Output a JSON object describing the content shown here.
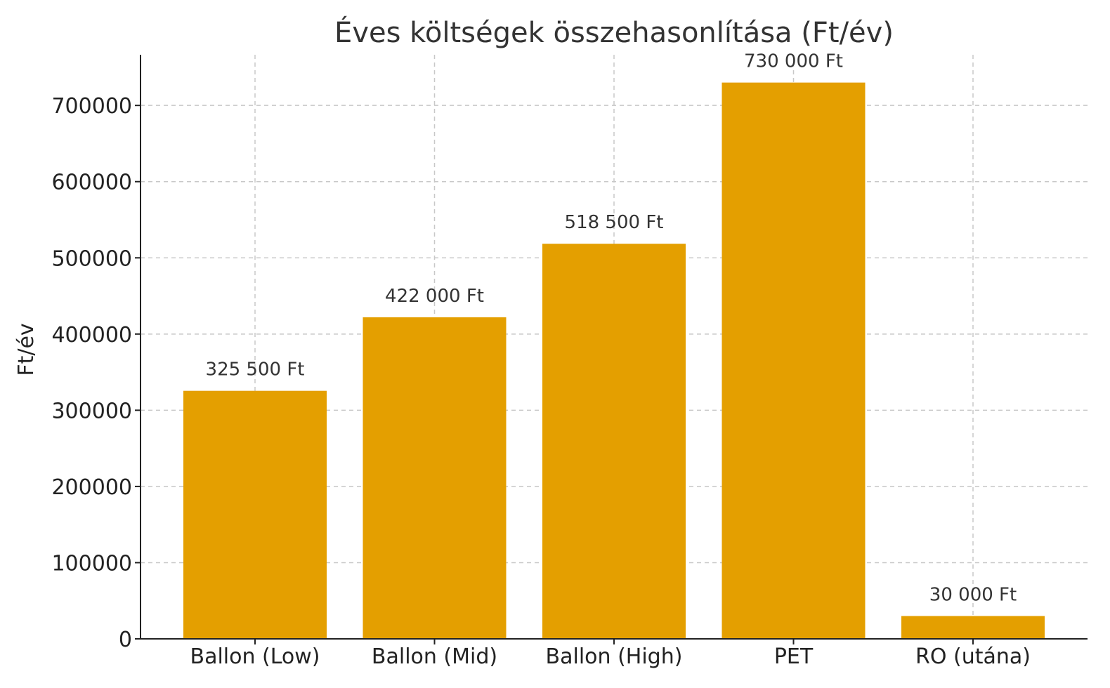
{
  "chart_data": {
    "type": "bar",
    "title": "Éves költségek összehasonlítása (Ft/év)",
    "xlabel": "",
    "ylabel": "Ft/év",
    "categories": [
      "Ballon (Low)",
      "Ballon (Mid)",
      "Ballon (High)",
      "PET",
      "RO (utána)"
    ],
    "values": [
      325500,
      422000,
      518500,
      730000,
      30000
    ],
    "data_labels": [
      "325 500 Ft",
      "422 000 Ft",
      "518 500 Ft",
      "730 000 Ft",
      "30 000 Ft"
    ],
    "yticks": [
      0,
      100000,
      200000,
      300000,
      400000,
      500000,
      600000,
      700000
    ],
    "ylim": [
      0,
      766500
    ],
    "grid": true,
    "bar_color": "#E49F00"
  }
}
